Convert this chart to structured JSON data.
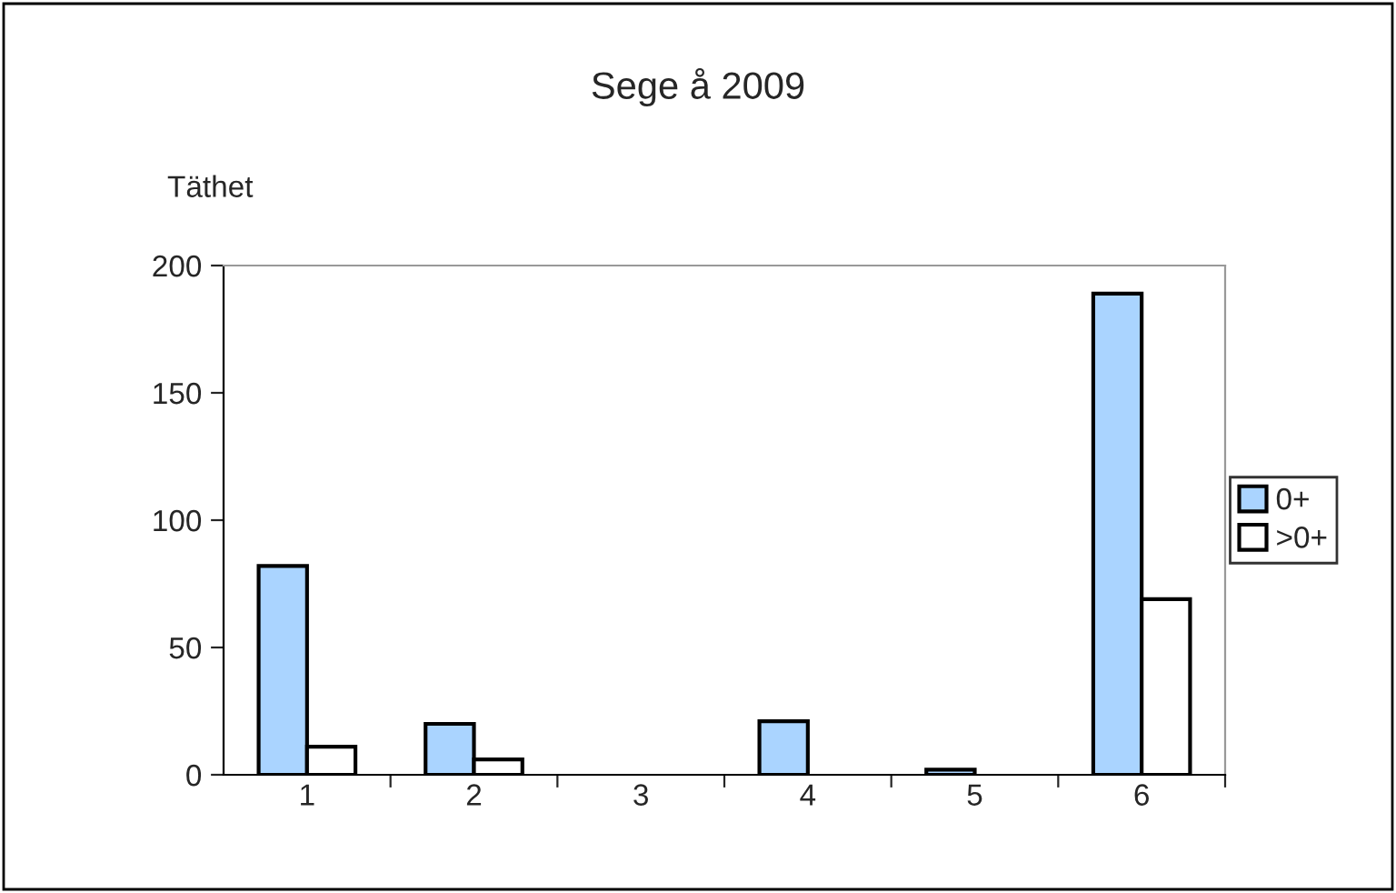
{
  "chart_data": {
    "type": "bar",
    "title": "Sege å 2009",
    "ylabel": "Täthet",
    "categories": [
      "1",
      "2",
      "3",
      "4",
      "5",
      "6"
    ],
    "series": [
      {
        "name": "0+",
        "color": "#aad4ff",
        "values": [
          82,
          20,
          0,
          21,
          2,
          189
        ]
      },
      {
        "name": ">0+",
        "color": "#ffffff",
        "values": [
          11,
          6,
          0,
          0,
          0,
          69
        ]
      }
    ],
    "ylim": [
      0,
      200
    ],
    "yticks": [
      0,
      50,
      100,
      150,
      200
    ],
    "grid": false,
    "legend": "right"
  }
}
